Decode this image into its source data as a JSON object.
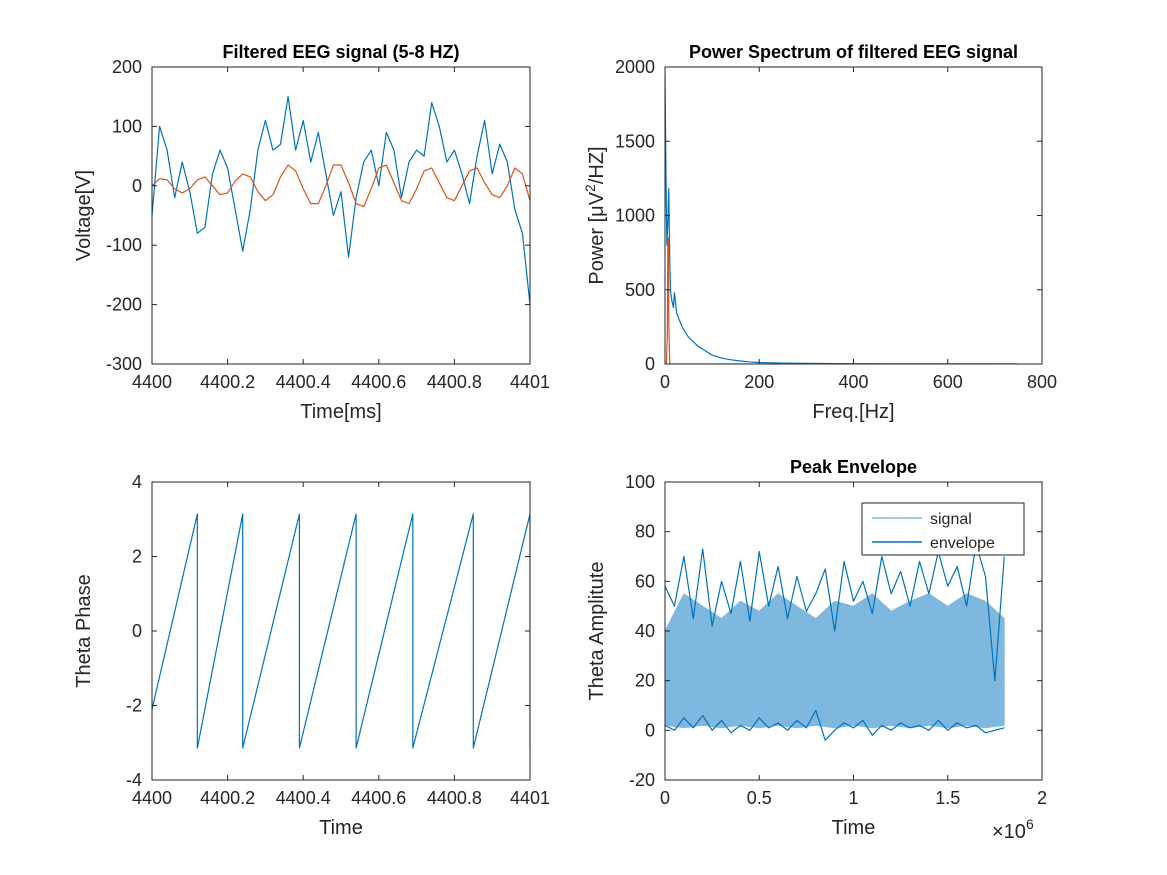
{
  "chart_data": [
    {
      "type": "line",
      "title": "Filtered EEG signal (5-8 HZ)",
      "xlabel": "Time[ms]",
      "ylabel": "Voltage[V]",
      "xlim": [
        4400,
        4401
      ],
      "ylim": [
        -300,
        200
      ],
      "xticks": [
        "4400",
        "4400.2",
        "4400.4",
        "4400.6",
        "4400.8",
        "4401"
      ],
      "yticks": [
        "-300",
        "-200",
        "-100",
        "0",
        "100",
        "200"
      ],
      "grid": false,
      "series": [
        {
          "color": "#0072BD",
          "x": [
            4400.0,
            4400.02,
            4400.04,
            4400.06,
            4400.08,
            4400.1,
            4400.12,
            4400.14,
            4400.16,
            4400.18,
            4400.2,
            4400.22,
            4400.24,
            4400.26,
            4400.28,
            4400.3,
            4400.32,
            4400.34,
            4400.36,
            4400.38,
            4400.4,
            4400.42,
            4400.44,
            4400.46,
            4400.48,
            4400.5,
            4400.52,
            4400.54,
            4400.56,
            4400.58,
            4400.6,
            4400.62,
            4400.64,
            4400.66,
            4400.68,
            4400.7,
            4400.72,
            4400.74,
            4400.76,
            4400.78,
            4400.8,
            4400.82,
            4400.84,
            4400.86,
            4400.88,
            4400.9,
            4400.92,
            4400.94,
            4400.96,
            4400.98,
            4401.0
          ],
          "y": [
            -50,
            100,
            60,
            -20,
            40,
            -10,
            -80,
            -70,
            20,
            60,
            30,
            -40,
            -110,
            -40,
            60,
            110,
            60,
            70,
            150,
            60,
            110,
            40,
            90,
            20,
            -50,
            -10,
            -120,
            -20,
            40,
            60,
            0,
            90,
            60,
            -20,
            40,
            60,
            50,
            140,
            100,
            40,
            60,
            20,
            -30,
            50,
            110,
            20,
            70,
            40,
            -40,
            -80,
            -200
          ]
        },
        {
          "color": "#D95319",
          "x": [
            4400.0,
            4400.02,
            4400.04,
            4400.06,
            4400.08,
            4400.1,
            4400.12,
            4400.14,
            4400.16,
            4400.18,
            4400.2,
            4400.22,
            4400.24,
            4400.26,
            4400.28,
            4400.3,
            4400.32,
            4400.34,
            4400.36,
            4400.38,
            4400.4,
            4400.42,
            4400.44,
            4400.46,
            4400.48,
            4400.5,
            4400.52,
            4400.54,
            4400.56,
            4400.58,
            4400.6,
            4400.62,
            4400.64,
            4400.66,
            4400.68,
            4400.7,
            4400.72,
            4400.74,
            4400.76,
            4400.78,
            4400.8,
            4400.82,
            4400.84,
            4400.86,
            4400.88,
            4400.9,
            4400.92,
            4400.94,
            4400.96,
            4400.98,
            4401.0
          ],
          "y": [
            0,
            12,
            10,
            -5,
            -12,
            -5,
            10,
            15,
            0,
            -15,
            -12,
            8,
            20,
            15,
            -10,
            -25,
            -15,
            15,
            35,
            25,
            -5,
            -30,
            -30,
            0,
            35,
            35,
            5,
            -30,
            -35,
            -5,
            30,
            35,
            5,
            -25,
            -30,
            -5,
            25,
            30,
            5,
            -20,
            -25,
            0,
            25,
            30,
            5,
            -15,
            -20,
            0,
            30,
            20,
            -25
          ]
        }
      ]
    },
    {
      "type": "line",
      "title": "Power Spectrum of filtered EEG signal",
      "xlabel": "Freq.[Hz]",
      "ylabel": "Power [μV²/HZ]",
      "xlim": [
        0,
        800
      ],
      "ylim": [
        0,
        2000
      ],
      "xticks": [
        "0",
        "200",
        "400",
        "600",
        "800"
      ],
      "yticks": [
        "0",
        "500",
        "1000",
        "1500",
        "2000"
      ],
      "grid": false,
      "series": [
        {
          "color": "#0072BD",
          "x": [
            0,
            2,
            4,
            6,
            8,
            10,
            12,
            15,
            18,
            20,
            25,
            30,
            35,
            40,
            50,
            60,
            70,
            80,
            90,
            100,
            120,
            140,
            160,
            180,
            200,
            250,
            300,
            400,
            500,
            600,
            700,
            750
          ],
          "y": [
            1950,
            1300,
            800,
            950,
            1180,
            700,
            480,
            420,
            380,
            480,
            340,
            300,
            260,
            230,
            180,
            150,
            120,
            100,
            80,
            60,
            40,
            28,
            20,
            14,
            10,
            6,
            4,
            2,
            1,
            1,
            0,
            0
          ]
        },
        {
          "color": "#D95319",
          "x": [
            0,
            3,
            5,
            6,
            7,
            8,
            10,
            15,
            50,
            100,
            200,
            400,
            600,
            750
          ],
          "y": [
            0,
            0,
            200,
            820,
            850,
            300,
            0,
            0,
            0,
            0,
            0,
            0,
            0,
            0
          ]
        }
      ]
    },
    {
      "type": "line",
      "title": "",
      "xlabel": "Time",
      "ylabel": "Theta Phase",
      "xlim": [
        4400,
        4401
      ],
      "ylim": [
        -4,
        4
      ],
      "xticks": [
        "4400",
        "4400.2",
        "4400.4",
        "4400.6",
        "4400.8",
        "4401"
      ],
      "yticks": [
        "-4",
        "-2",
        "0",
        "2",
        "4"
      ],
      "grid": false,
      "series": [
        {
          "color": "#0072BD",
          "x": [
            4400.0,
            4400.12,
            4400.12,
            4400.24,
            4400.24,
            4400.39,
            4400.39,
            4400.54,
            4400.54,
            4400.69,
            4400.69,
            4400.85,
            4400.85,
            4401.0,
            4401.0
          ],
          "y": [
            -2.1,
            3.14,
            -3.14,
            3.14,
            -3.14,
            3.14,
            -3.14,
            3.14,
            -3.14,
            3.14,
            -3.14,
            3.14,
            -3.14,
            3.14,
            -3.14
          ]
        }
      ]
    },
    {
      "type": "line",
      "title": "Peak Envelope",
      "xlabel": "Time",
      "ylabel": "Theta Amplitute",
      "x_exponent": "×10",
      "x_exponent_power": "6",
      "xlim": [
        0,
        2
      ],
      "ylim": [
        -20,
        100
      ],
      "xticks": [
        "0",
        "0.5",
        "1",
        "1.5",
        "2"
      ],
      "yticks": [
        "-20",
        "0",
        "20",
        "40",
        "60",
        "80",
        "100"
      ],
      "grid": false,
      "legend": {
        "placement": "top-right",
        "entries": [
          "signal",
          "envelope"
        ]
      },
      "series": [
        {
          "name": "signal",
          "color": "#7FB8DE",
          "band": true,
          "x": [
            0,
            0.1,
            0.2,
            0.3,
            0.4,
            0.5,
            0.6,
            0.7,
            0.8,
            0.9,
            1.0,
            1.1,
            1.2,
            1.3,
            1.4,
            1.5,
            1.6,
            1.7,
            1.8
          ],
          "ymin": [
            2,
            1,
            2,
            1,
            2,
            1,
            2,
            1,
            2,
            1,
            2,
            1,
            2,
            1,
            2,
            1,
            2,
            1,
            2
          ],
          "ymax": [
            40,
            55,
            50,
            45,
            52,
            48,
            55,
            50,
            45,
            52,
            50,
            55,
            48,
            52,
            55,
            50,
            55,
            52,
            45
          ]
        },
        {
          "name": "envelope",
          "color": "#0072BD",
          "x": [
            0,
            0.05,
            0.1,
            0.15,
            0.2,
            0.25,
            0.3,
            0.35,
            0.4,
            0.45,
            0.5,
            0.55,
            0.6,
            0.65,
            0.7,
            0.75,
            0.8,
            0.85,
            0.9,
            0.95,
            1.0,
            1.05,
            1.1,
            1.15,
            1.2,
            1.25,
            1.3,
            1.35,
            1.4,
            1.45,
            1.5,
            1.55,
            1.6,
            1.65,
            1.7,
            1.75,
            1.8
          ],
          "y": [
            58,
            50,
            70,
            45,
            73,
            42,
            60,
            47,
            68,
            44,
            72,
            50,
            66,
            45,
            62,
            48,
            55,
            65,
            40,
            68,
            52,
            60,
            47,
            70,
            55,
            64,
            50,
            68,
            55,
            72,
            58,
            66,
            50,
            75,
            62,
            20,
            70
          ]
        },
        {
          "name": "envelope",
          "color": "#0072BD",
          "x": [
            0,
            0.05,
            0.1,
            0.15,
            0.2,
            0.25,
            0.3,
            0.35,
            0.4,
            0.45,
            0.5,
            0.55,
            0.6,
            0.65,
            0.7,
            0.75,
            0.8,
            0.85,
            0.9,
            0.95,
            1.0,
            1.05,
            1.1,
            1.15,
            1.2,
            1.25,
            1.3,
            1.35,
            1.4,
            1.45,
            1.5,
            1.55,
            1.6,
            1.65,
            1.7,
            1.75,
            1.8
          ],
          "y": [
            2,
            0,
            5,
            1,
            6,
            0,
            4,
            -1,
            2,
            0,
            5,
            1,
            3,
            0,
            4,
            1,
            8,
            -4,
            0,
            3,
            1,
            4,
            -2,
            2,
            0,
            3,
            1,
            2,
            0,
            4,
            0,
            3,
            1,
            2,
            -1,
            0,
            1
          ]
        }
      ]
    }
  ]
}
